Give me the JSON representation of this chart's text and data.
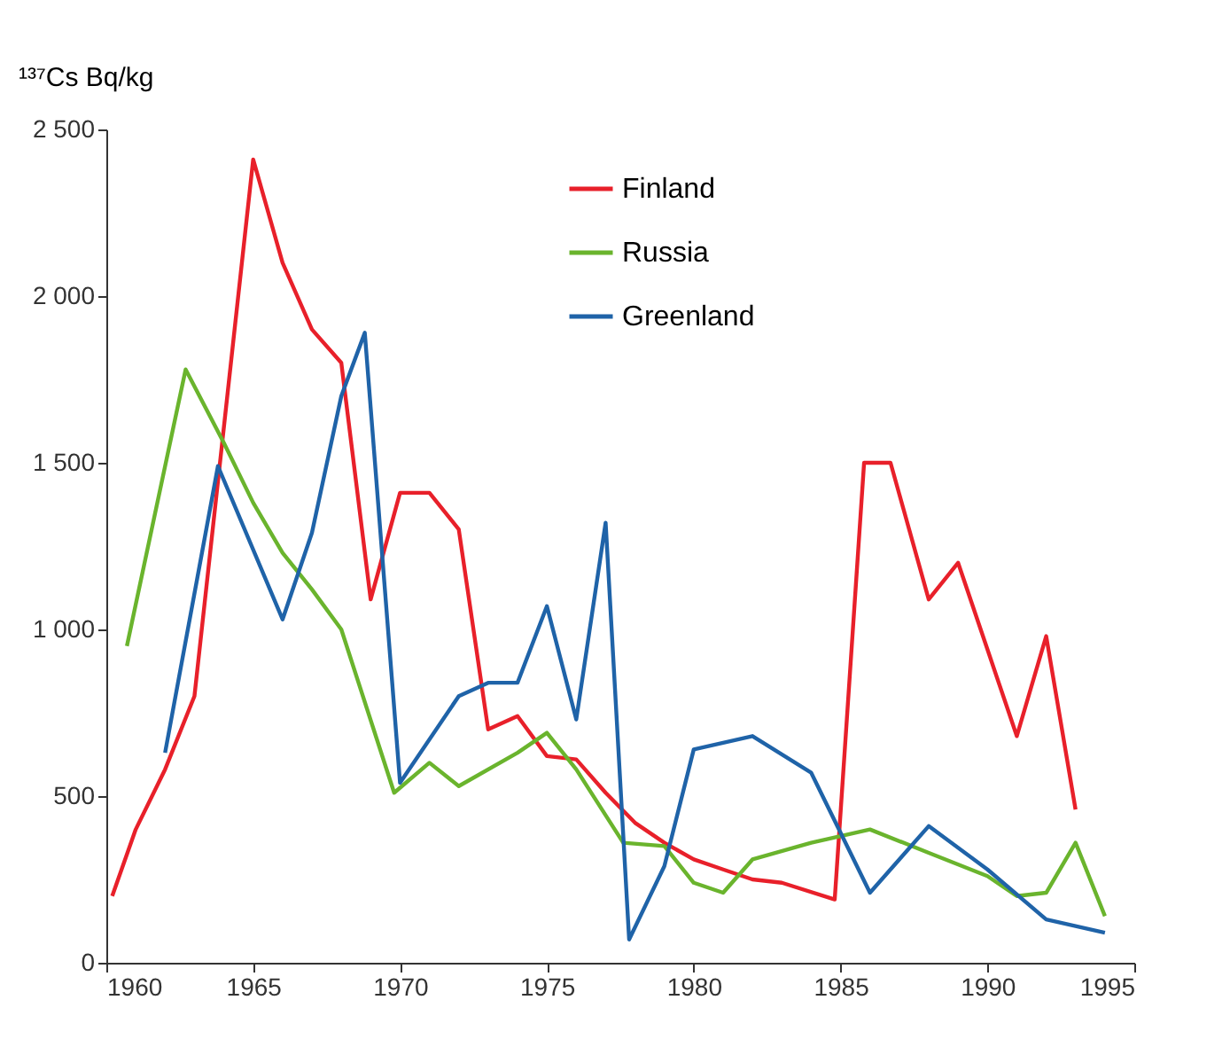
{
  "chart_data": {
    "type": "line",
    "ylabel": "¹³⁷Cs Bq/kg",
    "xlim": [
      1960,
      1995
    ],
    "xticks": [
      1960,
      1965,
      1970,
      1975,
      1980,
      1985,
      1990,
      1995
    ],
    "ylim": [
      0,
      2500
    ],
    "yticks": [
      0,
      500,
      {
        "value": 1000,
        "label": "1 000"
      },
      {
        "value": 1500,
        "label": "1 500"
      },
      {
        "value": 2000,
        "label": "2 000"
      },
      {
        "value": 2500,
        "label": "2 500"
      }
    ],
    "grid": false,
    "legend": "top",
    "marker": "none",
    "line_style": "solid",
    "series": [
      {
        "name": "Finland",
        "color": "#e8202a",
        "x": [
          1960.2,
          1961,
          1962,
          1963,
          1965,
          1966,
          1967,
          1968,
          1969,
          1970,
          1971,
          1972,
          1973,
          1974,
          1975,
          1976,
          1977,
          1978,
          1979,
          1980,
          1981,
          1982,
          1983,
          1984.8,
          1985.8,
          1986.7,
          1988,
          1989,
          1990,
          1991,
          1992,
          1993
        ],
        "values": [
          200,
          400,
          580,
          800,
          2410,
          2100,
          1900,
          1800,
          1090,
          1410,
          1410,
          1300,
          700,
          740,
          620,
          610,
          510,
          420,
          360,
          310,
          280,
          250,
          240,
          190,
          1500,
          1500,
          1090,
          1200,
          940,
          680,
          980,
          460
        ]
      },
      {
        "name": "Russia",
        "color": "#6ab42d",
        "x": [
          1960.7,
          1962.7,
          1964,
          1965,
          1966,
          1967,
          1968,
          1969.8,
          1971,
          1972,
          1974,
          1975,
          1976,
          1977.6,
          1979,
          1980,
          1981,
          1982,
          1984,
          1985,
          1986,
          1988,
          1990,
          1991,
          1992,
          1993,
          1994
        ],
        "values": [
          950,
          1780,
          1560,
          1380,
          1230,
          1120,
          1000,
          510,
          600,
          530,
          630,
          690,
          580,
          360,
          350,
          240,
          210,
          310,
          360,
          380,
          400,
          330,
          260,
          200,
          210,
          360,
          140
        ]
      },
      {
        "name": "Greenland",
        "color": "#1f63a8",
        "x": [
          1962,
          1963.8,
          1966,
          1967,
          1968,
          1968.8,
          1970,
          1972,
          1973,
          1974,
          1975,
          1976,
          1977,
          1977.8,
          1979,
          1980,
          1982,
          1984,
          1986,
          1988,
          1990,
          1992,
          1993,
          1994
        ],
        "values": [
          630,
          1490,
          1030,
          1290,
          1700,
          1890,
          540,
          800,
          840,
          840,
          1070,
          730,
          1320,
          70,
          290,
          640,
          680,
          570,
          210,
          410,
          280,
          130,
          110,
          90
        ]
      }
    ]
  }
}
